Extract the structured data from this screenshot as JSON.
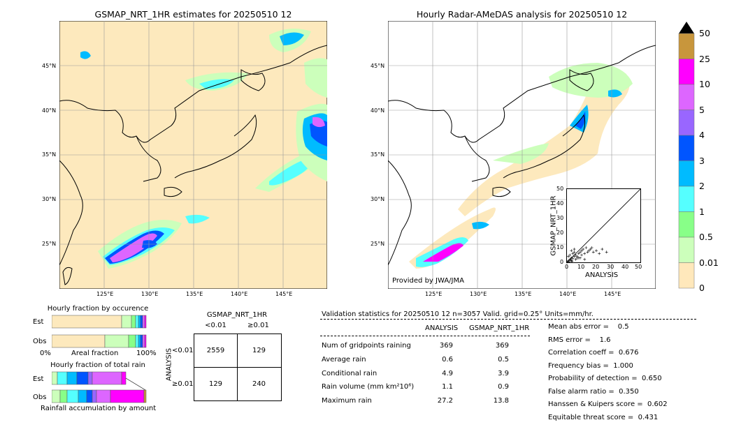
{
  "left_map": {
    "title": "GSMAP_NRT_1HR estimates for 20250510 12",
    "lat_labels": [
      "45°N",
      "40°N",
      "35°N",
      "30°N",
      "25°N"
    ],
    "lon_labels": [
      "125°E",
      "130°E",
      "135°E",
      "140°E",
      "145°E"
    ]
  },
  "right_map": {
    "title": "Hourly Radar-AMeDAS analysis for 20250510 12",
    "lat_labels": [
      "45°N",
      "40°N",
      "35°N",
      "30°N",
      "25°N"
    ],
    "lon_labels": [
      "125°E",
      "130°E",
      "135°E",
      "140°E",
      "145°E"
    ],
    "credit": "Provided by JWA/JMA"
  },
  "colorbar": {
    "labels": [
      "50",
      "25",
      "10",
      "5",
      "4",
      "3",
      "2",
      "1",
      "0.5",
      "0.01",
      "0"
    ],
    "colors": [
      "#c8963c",
      "#ff00ff",
      "#dd66ff",
      "#9966ff",
      "#0055ff",
      "#00bbff",
      "#55ffff",
      "#88ff88",
      "#ccffbb",
      "#ffe8bb"
    ]
  },
  "scatter": {
    "ylabel": "GSMAP_NRT_1HR",
    "xlabel": "ANALYSIS",
    "ticks": [
      "0",
      "10",
      "20",
      "30",
      "40",
      "50"
    ]
  },
  "occurrence": {
    "title": "Hourly fraction by occurence",
    "rows": [
      "Est",
      "Obs"
    ],
    "axis_left": "0%",
    "axis_mid": "Areal fraction",
    "axis_right": "100%"
  },
  "total_rain": {
    "title": "Hourly fraction of total rain",
    "rows": [
      "Est",
      "Obs"
    ],
    "footer": "Rainfall accumulation by amount"
  },
  "contingency": {
    "title": "GSMAP_NRT_1HR",
    "col_headers": [
      "<0.01",
      "≥0.01"
    ],
    "row_headers": [
      "<0.01",
      "≥0.01"
    ],
    "side_label": "ANALYSIS",
    "cells": [
      [
        "2559",
        "129"
      ],
      [
        "129",
        "240"
      ]
    ]
  },
  "validation": {
    "header": "Validation statistics for 20250510 12  n=3057 Valid. grid=0.25° Units=mm/hr.",
    "col_analysis": "ANALYSIS",
    "col_gsmap": "GSMAP_NRT_1HR",
    "rows": [
      {
        "label": "Num of gridpoints raining",
        "a": "369",
        "g": "369"
      },
      {
        "label": "Average rain",
        "a": "0.6",
        "g": "0.5"
      },
      {
        "label": "Conditional rain",
        "a": "4.9",
        "g": "3.9"
      },
      {
        "label": "Rain volume (mm km²10⁶)",
        "a": "1.1",
        "g": "0.9"
      },
      {
        "label": "Maximum rain",
        "a": "27.2",
        "g": "13.8"
      }
    ],
    "scores": [
      "Mean abs error =    0.5",
      "RMS error =    1.6",
      "Correlation coeff =  0.676",
      "Frequency bias =  1.000",
      "Probability of detection =  0.650",
      "False alarm ratio =  0.350",
      "Hanssen & Kuipers score =  0.602",
      "Equitable threat score =  0.431"
    ]
  },
  "chart_data": [
    {
      "type": "table",
      "title": "GSMAP_NRT_1HR",
      "columns": [
        "<0.01",
        "≥0.01"
      ],
      "rows": [
        "<0.01",
        "≥0.01"
      ],
      "values": [
        [
          2559,
          129
        ],
        [
          129,
          240
        ]
      ]
    },
    {
      "type": "scatter",
      "xlabel": "ANALYSIS",
      "ylabel": "GSMAP_NRT_1HR",
      "xlim": [
        0,
        50
      ],
      "ylim": [
        0,
        50
      ],
      "x": [
        0.5,
        1,
        1.5,
        2,
        2.5,
        3,
        3.5,
        4,
        5,
        6,
        7,
        8,
        9,
        10,
        11,
        12,
        13,
        14,
        15,
        16,
        17,
        18,
        20,
        22,
        24,
        27,
        1,
        2,
        3,
        4,
        5,
        6,
        8,
        10,
        12,
        3,
        5,
        7,
        9
      ],
      "y": [
        0.5,
        1,
        0.3,
        2,
        1.5,
        3,
        0.8,
        2.5,
        4,
        5,
        3,
        6,
        7,
        8,
        9,
        6,
        10,
        7,
        8,
        9,
        10,
        7,
        8,
        6,
        9,
        7,
        4,
        5,
        1,
        6,
        7,
        2,
        3,
        5,
        2,
        8,
        9,
        4,
        3
      ]
    }
  ]
}
